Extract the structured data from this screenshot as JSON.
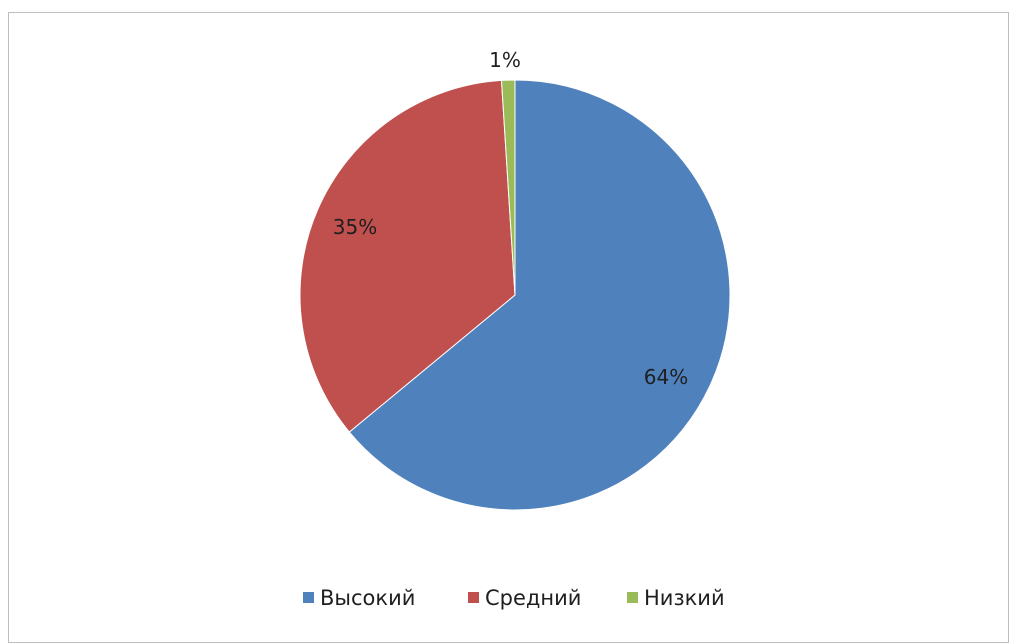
{
  "chart_data": {
    "type": "pie",
    "categories": [
      "Высокий",
      "Средний",
      "Низкий"
    ],
    "values": [
      64,
      35,
      1
    ],
    "value_labels": [
      "64%",
      "35%",
      "1%"
    ],
    "colors": [
      "#4f81bd",
      "#c0504d",
      "#9bbb59"
    ],
    "title": "",
    "legend_position": "bottom"
  }
}
